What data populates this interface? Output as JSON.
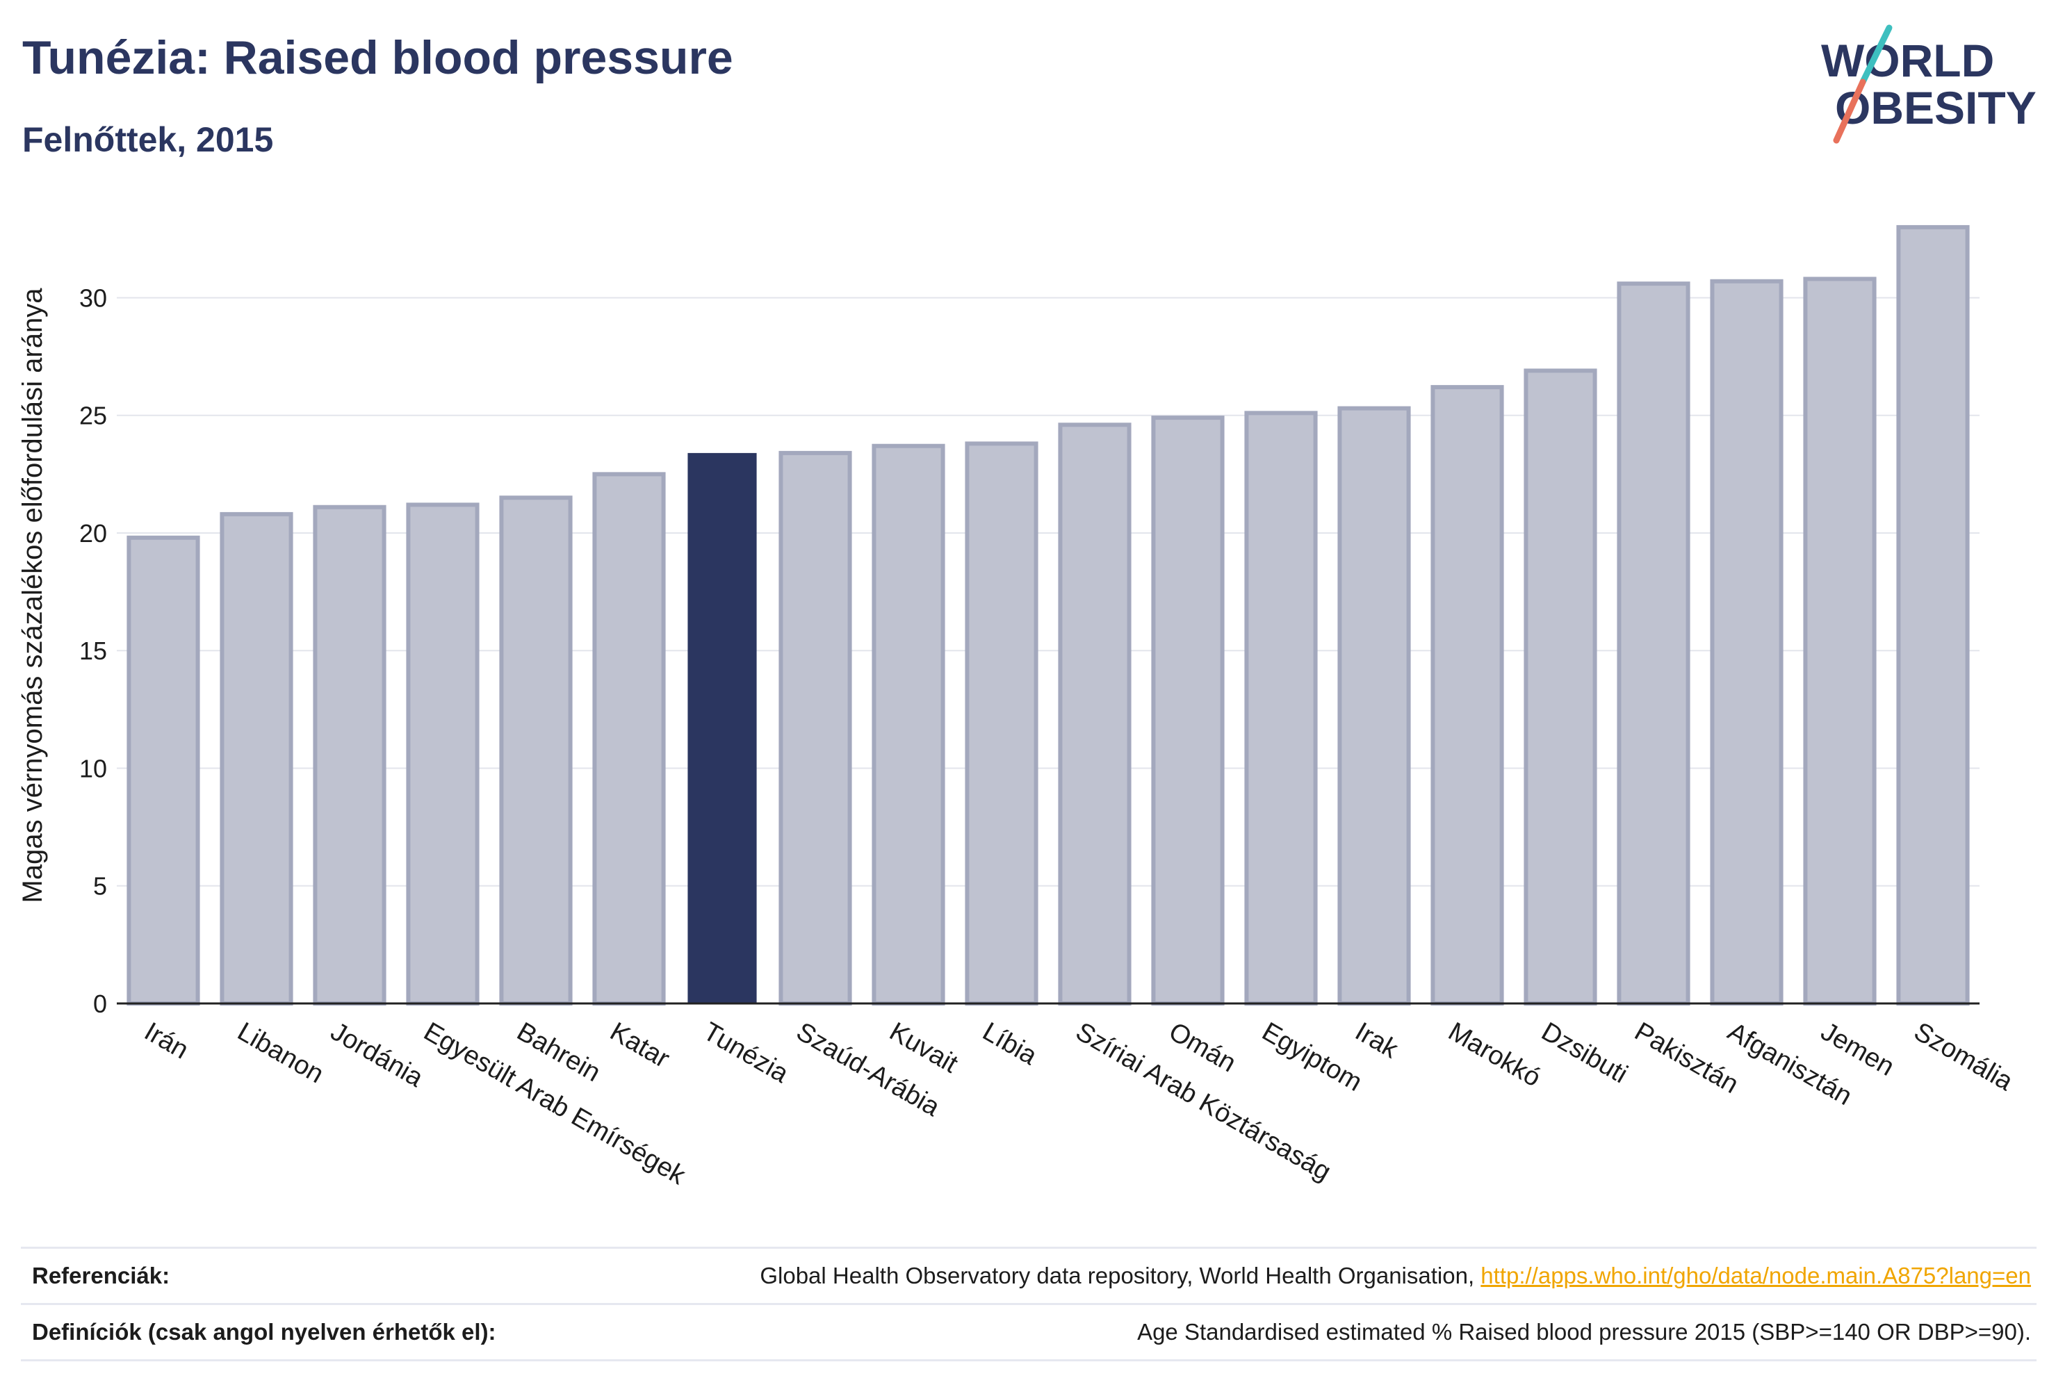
{
  "header": {
    "title": "Tunézia: Raised blood pressure",
    "subtitle": "Felnőttek, 2015"
  },
  "logo": {
    "line1": "WORLD",
    "line2": "OBESITY",
    "text_color": "#2b3660",
    "slash_colors": [
      "#3ebfbf",
      "#e8715b"
    ]
  },
  "colors": {
    "highlight_bar": "#2b3660",
    "other_bar_fill": "#bfc2d0",
    "other_bar_stroke": "#a3a8bd"
  },
  "chart_data": {
    "type": "bar",
    "title": "Tunézia: Raised blood pressure",
    "subtitle": "Felnőttek, 2015",
    "ylabel": "Magas vérnyomás százalékos előfordulási aránya",
    "xlabel": "",
    "ylim": [
      0,
      33.5
    ],
    "yticks": [
      0,
      5,
      10,
      15,
      20,
      25,
      30
    ],
    "grid": true,
    "highlight": "Tunézia",
    "categories": [
      "Irán",
      "Libanon",
      "Jordánia",
      "Egyesült Arab Emírségek",
      "Bahrein",
      "Katar",
      "Tunézia",
      "Szaúd-Arábia",
      "Kuvait",
      "Líbia",
      "Szíriai Arab Köztársaság",
      "Omán",
      "Egyiptom",
      "Irak",
      "Marokkó",
      "Dzsibuti",
      "Pakisztán",
      "Afganisztán",
      "Jemen",
      "Szomália"
    ],
    "values": [
      19.8,
      20.8,
      21.1,
      21.2,
      21.5,
      22.5,
      23.4,
      23.4,
      23.7,
      23.8,
      24.6,
      24.9,
      25.1,
      25.3,
      26.2,
      26.9,
      30.6,
      30.7,
      30.8,
      33.0
    ]
  },
  "footer": {
    "references_label": "Referenciák:",
    "references_text": "Global Health Observatory data repository, World Health Organisation, ",
    "references_link": "http://apps.who.int/gho/data/node.main.A875?lang=en",
    "definitions_label": "Definíciók (csak angol nyelven érhetők el):",
    "definitions_text": "Age Standardised estimated % Raised blood pressure 2015 (SBP>=140 OR DBP>=90)."
  }
}
